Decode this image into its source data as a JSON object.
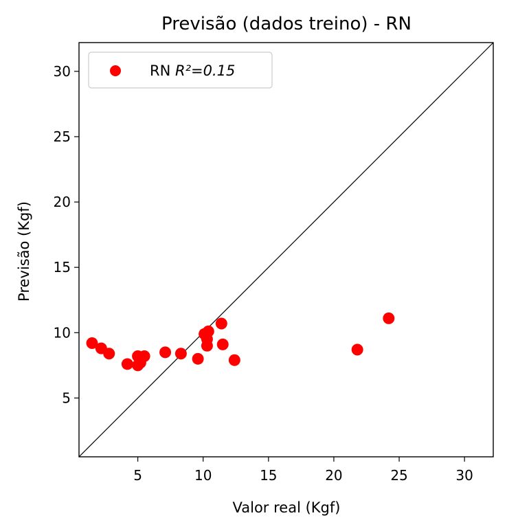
{
  "chart_data": {
    "type": "scatter",
    "title": "Previsão (dados treino) - RN",
    "xlabel": "Valor real (Kgf)",
    "ylabel": "Previsão (Kgf)",
    "xlim": [
      0.5,
      32.2
    ],
    "ylim": [
      0.5,
      32.2
    ],
    "xticks": [
      5,
      10,
      15,
      20,
      25,
      30
    ],
    "yticks": [
      5,
      10,
      15,
      20,
      25,
      30
    ],
    "grid": false,
    "legend_position": "top-left",
    "identity_line": true,
    "series": [
      {
        "name": "RN",
        "r2_label": "R²=0.15",
        "color": "#ff0000",
        "points": [
          {
            "x": 1.5,
            "y": 9.2
          },
          {
            "x": 2.2,
            "y": 8.8
          },
          {
            "x": 2.8,
            "y": 8.4
          },
          {
            "x": 4.2,
            "y": 7.6
          },
          {
            "x": 5.0,
            "y": 8.2
          },
          {
            "x": 5.0,
            "y": 7.5
          },
          {
            "x": 5.2,
            "y": 7.7
          },
          {
            "x": 5.5,
            "y": 8.2
          },
          {
            "x": 7.1,
            "y": 8.5
          },
          {
            "x": 8.3,
            "y": 8.4
          },
          {
            "x": 9.6,
            "y": 8.0
          },
          {
            "x": 10.1,
            "y": 9.9
          },
          {
            "x": 10.3,
            "y": 9.5
          },
          {
            "x": 10.3,
            "y": 9.0
          },
          {
            "x": 10.4,
            "y": 10.1
          },
          {
            "x": 11.4,
            "y": 10.7
          },
          {
            "x": 11.5,
            "y": 9.1
          },
          {
            "x": 12.4,
            "y": 7.9
          },
          {
            "x": 21.8,
            "y": 8.7
          },
          {
            "x": 24.2,
            "y": 11.1
          }
        ]
      }
    ]
  }
}
